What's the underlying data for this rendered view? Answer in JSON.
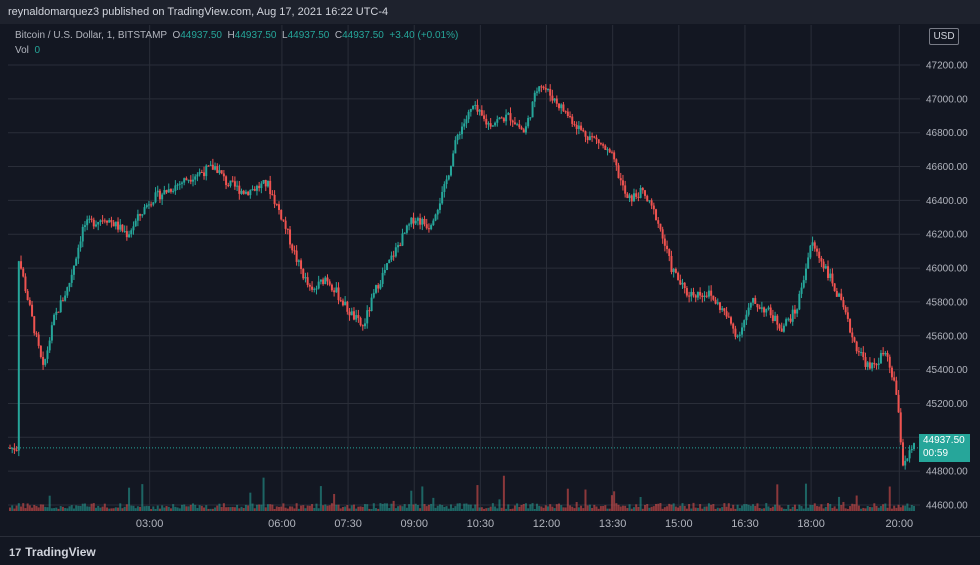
{
  "header": {
    "publisher_line": "reynaldomarquez3 published on TradingView.com, Aug 17, 2021 16:22 UTC-4"
  },
  "legend": {
    "symbol": "Bitcoin / U.S. Dollar, 1, BITSTAMP",
    "open_label": "O",
    "open": "44937.50",
    "high_label": "H",
    "high": "44937.50",
    "low_label": "L",
    "low": "44937.50",
    "close_label": "C",
    "close": "44937.50",
    "change": "+3.40 (+0.01%)",
    "vol_label": "Vol",
    "vol": "0"
  },
  "currency_button": "USD",
  "last_price": {
    "price": "44937.50",
    "countdown": "00:59"
  },
  "footer": {
    "logo_text": "TradingView"
  },
  "colors": {
    "up": "#26a69a",
    "down": "#ef5350",
    "background": "#131722",
    "grid": "#2a2e39",
    "text": "#b2b5be"
  },
  "chart_data": {
    "type": "candlestick",
    "symbol": "Bitcoin / U.S. Dollar, 1, BITSTAMP",
    "ylim": [
      44540,
      47300
    ],
    "ticks_y": [
      "47200.00",
      "47000.00",
      "46800.00",
      "46600.00",
      "46400.00",
      "46200.00",
      "46000.00",
      "45800.00",
      "45600.00",
      "45400.00",
      "45200.00",
      "45000.00",
      "44800.00",
      "44600.00"
    ],
    "ticks_x": [
      "03:00",
      "06:00",
      "07:30",
      "09:00",
      "10:30",
      "12:00",
      "13:30",
      "15:00",
      "16:30",
      "18:00",
      "20:00"
    ],
    "series": [
      {
        "name": "price",
        "points": [
          [
            "00:00",
            46100
          ],
          [
            "00:20",
            45700
          ],
          [
            "00:35",
            45400
          ],
          [
            "00:50",
            45700
          ],
          [
            "01:10",
            45900
          ],
          [
            "01:30",
            46250
          ],
          [
            "02:00",
            46300
          ],
          [
            "02:30",
            46200
          ],
          [
            "03:00",
            46400
          ],
          [
            "03:40",
            46500
          ],
          [
            "04:00",
            46550
          ],
          [
            "04:30",
            46600
          ],
          [
            "04:45",
            46500
          ],
          [
            "05:10",
            46450
          ],
          [
            "05:40",
            46500
          ],
          [
            "06:00",
            46300
          ],
          [
            "06:20",
            46050
          ],
          [
            "06:40",
            45850
          ],
          [
            "07:00",
            45950
          ],
          [
            "07:30",
            45750
          ],
          [
            "07:50",
            45650
          ],
          [
            "08:10",
            45900
          ],
          [
            "08:40",
            46150
          ],
          [
            "09:00",
            46300
          ],
          [
            "09:20",
            46250
          ],
          [
            "09:40",
            46450
          ],
          [
            "10:00",
            46800
          ],
          [
            "10:20",
            46950
          ],
          [
            "10:40",
            46850
          ],
          [
            "11:10",
            46900
          ],
          [
            "11:30",
            46800
          ],
          [
            "11:50",
            47100
          ],
          [
            "12:10",
            47000
          ],
          [
            "12:30",
            46900
          ],
          [
            "12:50",
            46800
          ],
          [
            "13:10",
            46750
          ],
          [
            "13:30",
            46650
          ],
          [
            "13:50",
            46400
          ],
          [
            "14:10",
            46450
          ],
          [
            "14:30",
            46300
          ],
          [
            "14:50",
            46000
          ],
          [
            "15:10",
            45850
          ],
          [
            "15:40",
            45850
          ],
          [
            "16:00",
            45750
          ],
          [
            "16:20",
            45600
          ],
          [
            "16:40",
            45800
          ],
          [
            "17:00",
            45750
          ],
          [
            "17:20",
            45650
          ],
          [
            "17:40",
            45750
          ],
          [
            "18:00",
            46150
          ],
          [
            "18:20",
            46000
          ],
          [
            "18:40",
            45800
          ],
          [
            "19:00",
            45550
          ],
          [
            "19:20",
            45400
          ],
          [
            "19:40",
            45500
          ],
          [
            "19:55",
            45300
          ],
          [
            "20:05",
            44850
          ],
          [
            "20:20",
            44937.5
          ]
        ]
      }
    ]
  }
}
